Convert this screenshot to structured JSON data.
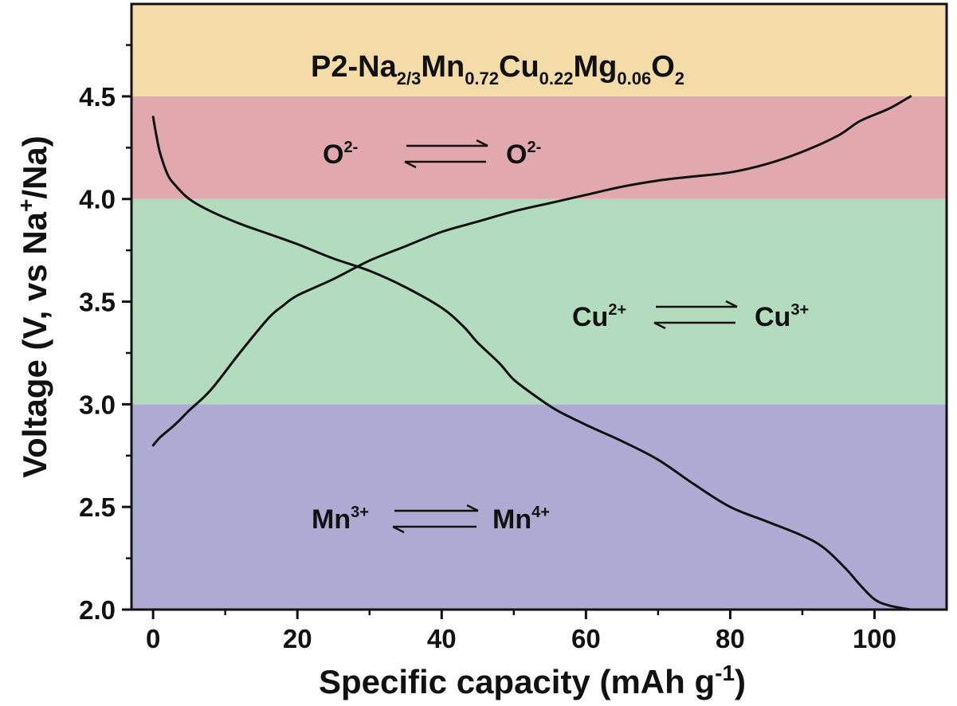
{
  "chart_data": {
    "type": "line",
    "title": "P2-Na2/3Mn0.72Cu0.22Mg0.06O2",
    "title_parts": {
      "prefix": "P2-Na",
      "na_sub": "2/3",
      "mn": "Mn",
      "mn_sub": "0.72",
      "cu": "Cu",
      "cu_sub": "0.22",
      "mg": "Mg",
      "mg_sub": "0.06",
      "o": "O",
      "o_sub": "2"
    },
    "xlabel": "Specific capacity (mAh g-1)",
    "xlabel_parts": {
      "main": "Specific capacity (mAh g",
      "sup": "-1",
      "close": ")"
    },
    "ylabel": "Voltage (V, vs Na+/Na)",
    "ylabel_parts": {
      "main": "Voltage (V, vs Na",
      "sup": "+",
      "rest": "/Na)"
    },
    "xlim": [
      -3,
      110
    ],
    "ylim": [
      2.0,
      4.95
    ],
    "xticks": [
      "0",
      "20",
      "40",
      "60",
      "80",
      "100"
    ],
    "yticks": [
      "2.0",
      "2.5",
      "3.0",
      "3.5",
      "4.0",
      "4.5"
    ],
    "grid": false,
    "bands": [
      {
        "y0": 2.0,
        "y1": 3.0,
        "color": "#aeaad4"
      },
      {
        "y0": 3.0,
        "y1": 4.0,
        "color": "#b3dbbd"
      },
      {
        "y0": 4.0,
        "y1": 4.5,
        "color": "#e1a8ae"
      },
      {
        "y0": 4.5,
        "y1": 4.95,
        "color": "#f3dca8"
      }
    ],
    "annotations": {
      "oxygen": {
        "left": "O",
        "left_sup": "2-",
        "right": "O",
        "right_sup": "2-"
      },
      "copper": {
        "left": "Cu",
        "left_sup": "2+",
        "right": "Cu",
        "right_sup": "3+"
      },
      "manganese": {
        "left": "Mn",
        "left_sup": "3+",
        "right": "Mn",
        "right_sup": "4+"
      }
    },
    "series": [
      {
        "x": [
          0,
          1,
          3,
          5,
          8,
          12,
          16,
          18,
          20,
          25,
          30,
          35,
          40,
          45,
          50,
          55,
          60,
          65,
          70,
          75,
          80,
          85,
          90,
          95,
          98,
          102,
          105
        ],
        "y": [
          2.8,
          2.84,
          2.9,
          2.97,
          3.07,
          3.25,
          3.42,
          3.48,
          3.53,
          3.61,
          3.7,
          3.77,
          3.84,
          3.89,
          3.94,
          3.98,
          4.02,
          4.06,
          4.09,
          4.11,
          4.13,
          4.17,
          4.23,
          4.31,
          4.38,
          4.44,
          4.5
        ]
      },
      {
        "x": [
          0,
          0.5,
          1,
          2,
          3,
          5,
          8,
          12,
          16,
          20,
          25,
          30,
          35,
          40,
          43,
          45,
          48,
          50,
          53,
          56,
          60,
          65,
          70,
          75,
          80,
          85,
          90,
          93,
          96,
          98,
          100,
          102,
          105
        ],
        "y": [
          4.4,
          4.3,
          4.22,
          4.12,
          4.07,
          4.0,
          3.94,
          3.88,
          3.83,
          3.78,
          3.71,
          3.65,
          3.57,
          3.47,
          3.38,
          3.3,
          3.2,
          3.12,
          3.04,
          2.97,
          2.9,
          2.82,
          2.73,
          2.61,
          2.5,
          2.43,
          2.36,
          2.3,
          2.2,
          2.12,
          2.05,
          2.02,
          2.0
        ]
      }
    ]
  }
}
